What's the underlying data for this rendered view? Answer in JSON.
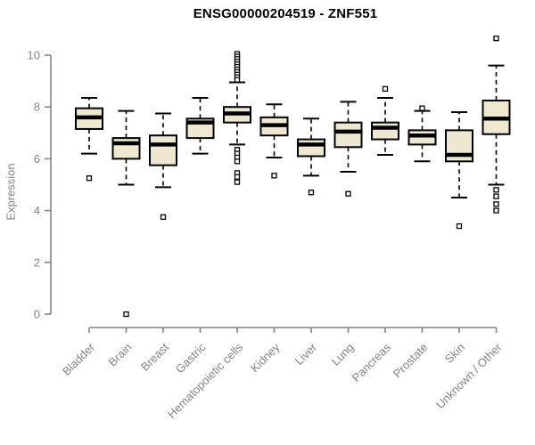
{
  "chart_data": {
    "type": "boxplot",
    "title": "ENSG00000204519 - ZNF551",
    "ylabel": "Expression",
    "xlabel": "",
    "ylim": [
      0,
      10
    ],
    "yticks": [
      0,
      2,
      4,
      6,
      8,
      10
    ],
    "grid": false,
    "legend": null,
    "colors": {
      "box_fill": "#EEE8D0",
      "box_stroke": "#000000",
      "axis": "#848484",
      "title": "#000000"
    },
    "categories": [
      "Bladder",
      "Brain",
      "Breast",
      "Gastric",
      "Hematopoietic cells",
      "Kidney",
      "Liver",
      "Lung",
      "Pancreas",
      "Prostate",
      "Skin",
      "Unknown / Other"
    ],
    "series": [
      {
        "name": "Bladder",
        "low": 6.2,
        "q1": 7.15,
        "median": 7.6,
        "q3": 7.95,
        "high": 8.35,
        "outliers": [
          5.25
        ]
      },
      {
        "name": "Brain",
        "low": 5.0,
        "q1": 6.0,
        "median": 6.6,
        "q3": 6.8,
        "high": 7.85,
        "outliers": [
          0.0
        ]
      },
      {
        "name": "Breast",
        "low": 4.9,
        "q1": 5.75,
        "median": 6.55,
        "q3": 6.9,
        "high": 7.75,
        "outliers": [
          3.75
        ]
      },
      {
        "name": "Gastric",
        "low": 6.2,
        "q1": 6.8,
        "median": 7.4,
        "q3": 7.55,
        "high": 8.35,
        "outliers": []
      },
      {
        "name": "Hematopoietic cells",
        "low": 6.55,
        "q1": 7.4,
        "median": 7.75,
        "q3": 8.0,
        "high": 8.95,
        "outliers": [
          10.05,
          9.95,
          9.85,
          9.75,
          9.65,
          9.55,
          9.45,
          9.35,
          9.25,
          9.15,
          9.05,
          6.35,
          6.2,
          6.05,
          5.9,
          5.45,
          5.3,
          5.1
        ]
      },
      {
        "name": "Kidney",
        "low": 6.05,
        "q1": 6.9,
        "median": 7.3,
        "q3": 7.6,
        "high": 8.1,
        "outliers": [
          5.35
        ]
      },
      {
        "name": "Liver",
        "low": 5.35,
        "q1": 6.1,
        "median": 6.55,
        "q3": 6.75,
        "high": 7.55,
        "outliers": [
          4.7
        ]
      },
      {
        "name": "Lung",
        "low": 5.5,
        "q1": 6.45,
        "median": 7.05,
        "q3": 7.4,
        "high": 8.2,
        "outliers": [
          4.65
        ]
      },
      {
        "name": "Pancreas",
        "low": 6.15,
        "q1": 6.75,
        "median": 7.2,
        "q3": 7.4,
        "high": 8.35,
        "outliers": [
          8.7
        ]
      },
      {
        "name": "Prostate",
        "low": 5.9,
        "q1": 6.55,
        "median": 6.9,
        "q3": 7.1,
        "high": 7.85,
        "outliers": [
          7.95
        ]
      },
      {
        "name": "Skin",
        "low": 4.5,
        "q1": 5.9,
        "median": 6.15,
        "q3": 7.1,
        "high": 7.8,
        "outliers": [
          3.4
        ]
      },
      {
        "name": "Unknown / Other",
        "low": 5.0,
        "q1": 6.95,
        "median": 7.55,
        "q3": 8.25,
        "high": 9.6,
        "outliers": [
          10.65,
          4.8,
          4.55,
          4.25,
          4.0
        ]
      }
    ]
  }
}
